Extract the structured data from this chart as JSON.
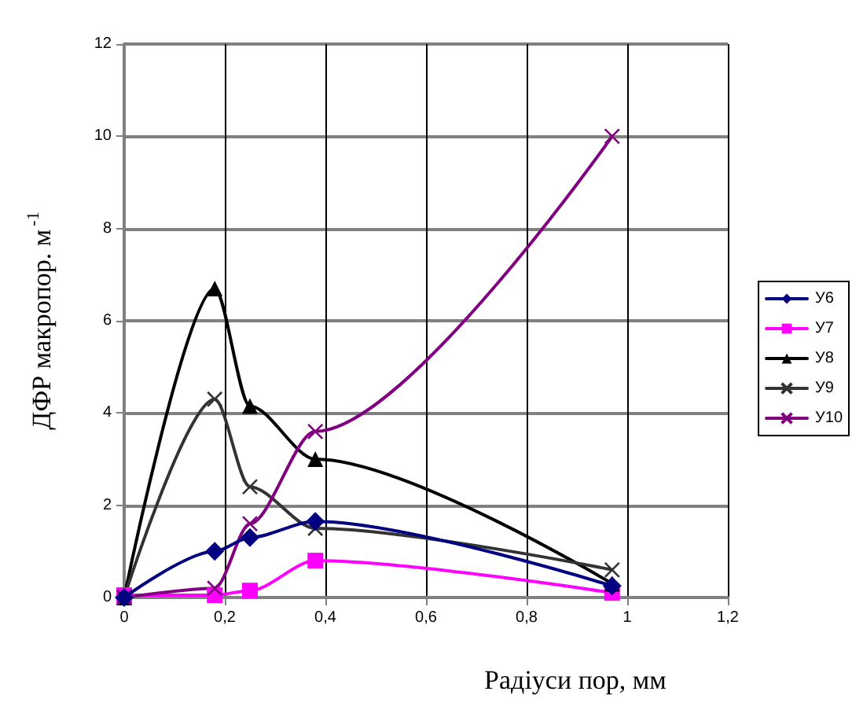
{
  "chart_data": {
    "type": "line",
    "xlabel": "Радіуси пор, мм",
    "ylabel": "ДФР макропор. м$^{-1}$",
    "x": [
      0,
      0.18,
      0.25,
      0.38,
      0.97
    ],
    "series": [
      {
        "name": "У6",
        "color": "#000080",
        "marker": "diamond",
        "values": [
          0,
          1.0,
          1.3,
          1.65,
          0.25
        ]
      },
      {
        "name": "У7",
        "color": "#ff00ff",
        "marker": "square",
        "values": [
          0.05,
          0.05,
          0.15,
          0.8,
          0.1
        ]
      },
      {
        "name": "У8",
        "color": "#000000",
        "marker": "triangle",
        "values": [
          0,
          6.7,
          4.15,
          3.0,
          0.3
        ]
      },
      {
        "name": "У9",
        "color": "#333333",
        "marker": "cross",
        "values": [
          0,
          4.3,
          2.4,
          1.5,
          0.6
        ]
      },
      {
        "name": "У10",
        "color": "#800080",
        "marker": "cross",
        "values": [
          0,
          0.2,
          1.6,
          3.6,
          10.0
        ]
      }
    ],
    "xlim": [
      0,
      1.2
    ],
    "xticks": [
      0,
      {
        "value": 0.2,
        "label": "0,2"
      },
      {
        "value": 0.4,
        "label": "0,4"
      },
      {
        "value": 0.6,
        "label": "0,6"
      },
      {
        "value": 0.8,
        "label": "0,8"
      },
      1,
      {
        "value": 1.2,
        "label": "1,2"
      }
    ],
    "ylim": [
      0,
      12
    ],
    "yticks": [
      0,
      2,
      4,
      6,
      8,
      10,
      12
    ],
    "grid": true,
    "legend": "right"
  }
}
